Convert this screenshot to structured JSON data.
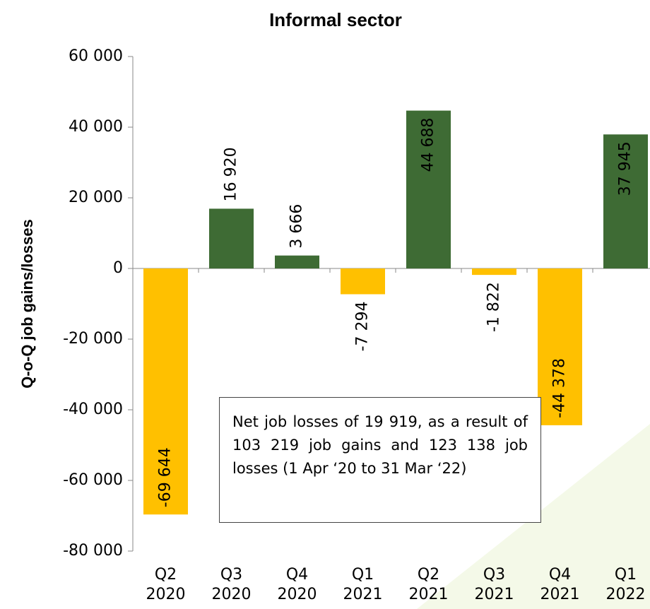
{
  "chart_data": {
    "type": "bar",
    "title": "Informal sector",
    "y_label": "Q-o-Q job gains/losses",
    "categories": [
      "Q2 2020",
      "Q3 2020",
      "Q4 2020",
      "Q1 2021",
      "Q2 2021",
      "Q3 2021",
      "Q4 2021",
      "Q1 2022"
    ],
    "values": [
      -69644,
      16920,
      3666,
      -7294,
      44688,
      -1822,
      -44378,
      37945
    ],
    "value_labels": [
      "-69 644",
      "16 920",
      "3 666",
      "-7 294",
      "44 688",
      "-1 822",
      "-44 378",
      "37 945"
    ],
    "positive_color": "#3e6b34",
    "negative_color": "#ffc000",
    "ylim": [
      -80000,
      60000
    ],
    "yticks": [
      {
        "value": -80000,
        "label": "-80 000"
      },
      {
        "value": -60000,
        "label": "-60 000"
      },
      {
        "value": -40000,
        "label": "-40 000"
      },
      {
        "value": -20000,
        "label": "-20 000"
      },
      0,
      {
        "value": 20000,
        "label": "20 000"
      },
      {
        "value": 40000,
        "label": "40 000"
      },
      {
        "value": 60000,
        "label": "60 000"
      }
    ],
    "grid": false,
    "annotation": "Net job losses of 19 919, as a result of 103 219 job gains and 123 138 job losses (1 Apr ‘20 to 31 Mar ‘22)"
  }
}
